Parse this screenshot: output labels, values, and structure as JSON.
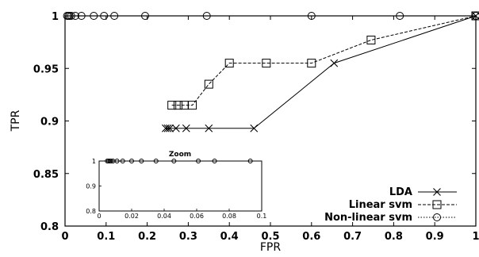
{
  "chart_data": [
    {
      "type": "line",
      "title": "",
      "xlabel": "FPR",
      "ylabel": "TPR",
      "xlim": [
        0,
        1
      ],
      "ylim": [
        0.8,
        1
      ],
      "xticks": [
        "0",
        "0.1",
        "0.2",
        "0.3",
        "0.4",
        "0.5",
        "0.6",
        "0.7",
        "0.8",
        "0.9",
        "1"
      ],
      "yticks": [
        "0.8",
        "0.85",
        "0.9",
        "0.95",
        "1"
      ],
      "grid": false,
      "legend_position": "bottom-right",
      "series": [
        {
          "name": "LDA",
          "marker": "x",
          "line": "solid",
          "points": [
            [
              0.245,
              0.893
            ],
            [
              0.25,
              0.893
            ],
            [
              0.255,
              0.893
            ],
            [
              0.27,
              0.893
            ],
            [
              0.295,
              0.893
            ],
            [
              0.35,
              0.893
            ],
            [
              0.46,
              0.893
            ],
            [
              0.655,
              0.955
            ],
            [
              1.0,
              1.0
            ]
          ]
        },
        {
          "name": "Linear svm",
          "marker": "square",
          "line": "dashed",
          "points": [
            [
              0.26,
              0.915
            ],
            [
              0.275,
              0.915
            ],
            [
              0.29,
              0.915
            ],
            [
              0.31,
              0.915
            ],
            [
              0.35,
              0.935
            ],
            [
              0.4,
              0.955
            ],
            [
              0.49,
              0.955
            ],
            [
              0.6,
              0.955
            ],
            [
              0.745,
              0.977
            ],
            [
              1.0,
              1.0
            ]
          ]
        },
        {
          "name": "Non-linear svm",
          "marker": "circle",
          "line": "dotted",
          "points": [
            [
              0.005,
              1.0
            ],
            [
              0.008,
              1.0
            ],
            [
              0.011,
              1.0
            ],
            [
              0.015,
              1.0
            ],
            [
              0.025,
              1.0
            ],
            [
              0.04,
              1.0
            ],
            [
              0.07,
              1.0
            ],
            [
              0.095,
              1.0
            ],
            [
              0.12,
              1.0
            ],
            [
              0.195,
              1.0
            ],
            [
              0.345,
              1.0
            ],
            [
              0.6,
              1.0
            ],
            [
              0.815,
              1.0
            ],
            [
              1.0,
              1.0
            ]
          ]
        }
      ]
    },
    {
      "type": "scatter",
      "title": "Zoom",
      "xlabel": "",
      "ylabel": "",
      "xlim": [
        0,
        0.1
      ],
      "ylim": [
        0.8,
        1
      ],
      "xticks": [
        "0",
        "0.02",
        "0.04",
        "0.06",
        "0.08",
        "0.1"
      ],
      "yticks": [
        "0.8",
        "0.9",
        "1"
      ],
      "series": [
        {
          "name": "Non-linear svm",
          "marker": "circle",
          "points": [
            [
              0.005,
              1.0
            ],
            [
              0.0058,
              1.0
            ],
            [
              0.0066,
              1.0
            ],
            [
              0.0074,
              1.0
            ],
            [
              0.0085,
              1.0
            ],
            [
              0.011,
              1.0
            ],
            [
              0.0145,
              1.0
            ],
            [
              0.02,
              1.0
            ],
            [
              0.026,
              1.0
            ],
            [
              0.035,
              1.0
            ],
            [
              0.046,
              1.0
            ],
            [
              0.061,
              1.0
            ],
            [
              0.071,
              1.0
            ],
            [
              0.093,
              1.0
            ]
          ]
        }
      ]
    }
  ]
}
